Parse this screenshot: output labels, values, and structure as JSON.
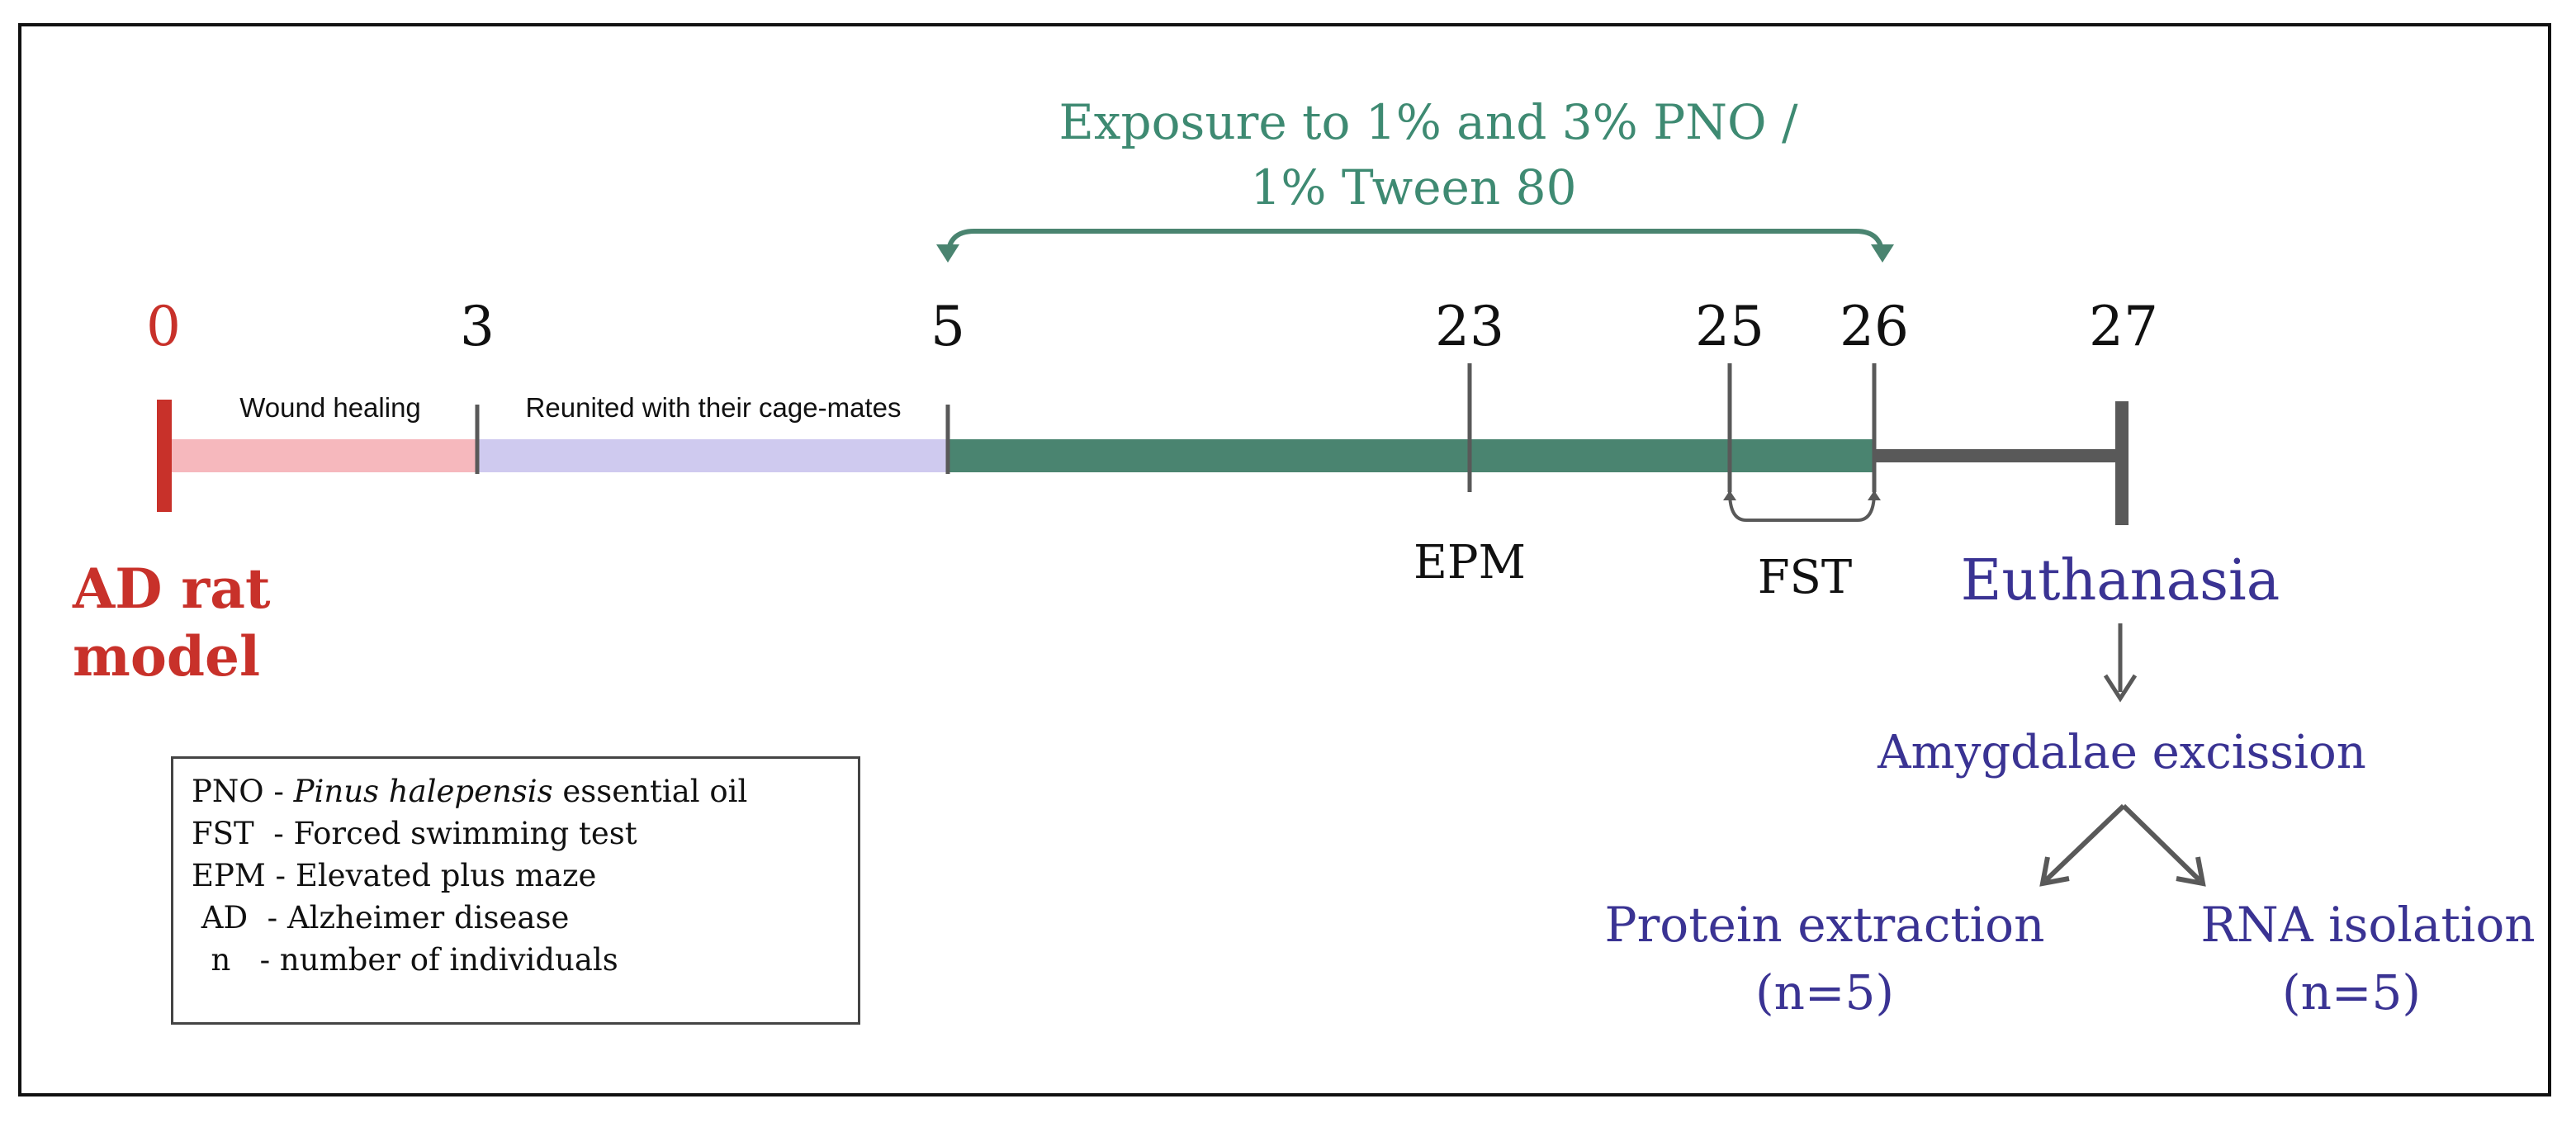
{
  "exposure_label": {
    "line1": "Exposure to 1% and 3% PNO /",
    "line2": "1% Tween 80"
  },
  "timeline": {
    "days": [
      "0",
      "3",
      "5",
      "23",
      "25",
      "26",
      "27"
    ],
    "segments": {
      "wound": "Wound healing",
      "reunited": "Reunited with their cage-mates"
    },
    "tests": {
      "epm": "EPM",
      "fst": "FST"
    }
  },
  "model_label": {
    "line1": "AD rat",
    "line2": "model"
  },
  "outcome": {
    "euthanasia": "Euthanasia",
    "excision": "Amygdalae excission",
    "protein": {
      "title": "Protein extraction",
      "n": "(n=5)"
    },
    "rna": {
      "title": "RNA isolation",
      "n": "(n=5)"
    }
  },
  "legend": [
    {
      "abbr": "PNO",
      "def_italic": "Pinus halepensis",
      "def": "essential oil"
    },
    {
      "abbr": "FST",
      "def_italic": "",
      "def": "Forced swimming test"
    },
    {
      "abbr": "EPM",
      "def_italic": "",
      "def": "Elevated plus maze"
    },
    {
      "abbr": "AD",
      "def_italic": "",
      "def": "Alzheimer disease"
    },
    {
      "abbr": "n",
      "def_italic": "",
      "def": "number of individuals"
    }
  ],
  "colors": {
    "red": "#c8312a",
    "pink": "#f6b8bd",
    "lavender": "#cfcaef",
    "green": "#4a8470",
    "gray": "#595959",
    "teal_text": "#3e8a72",
    "purple": "#3a3393"
  }
}
